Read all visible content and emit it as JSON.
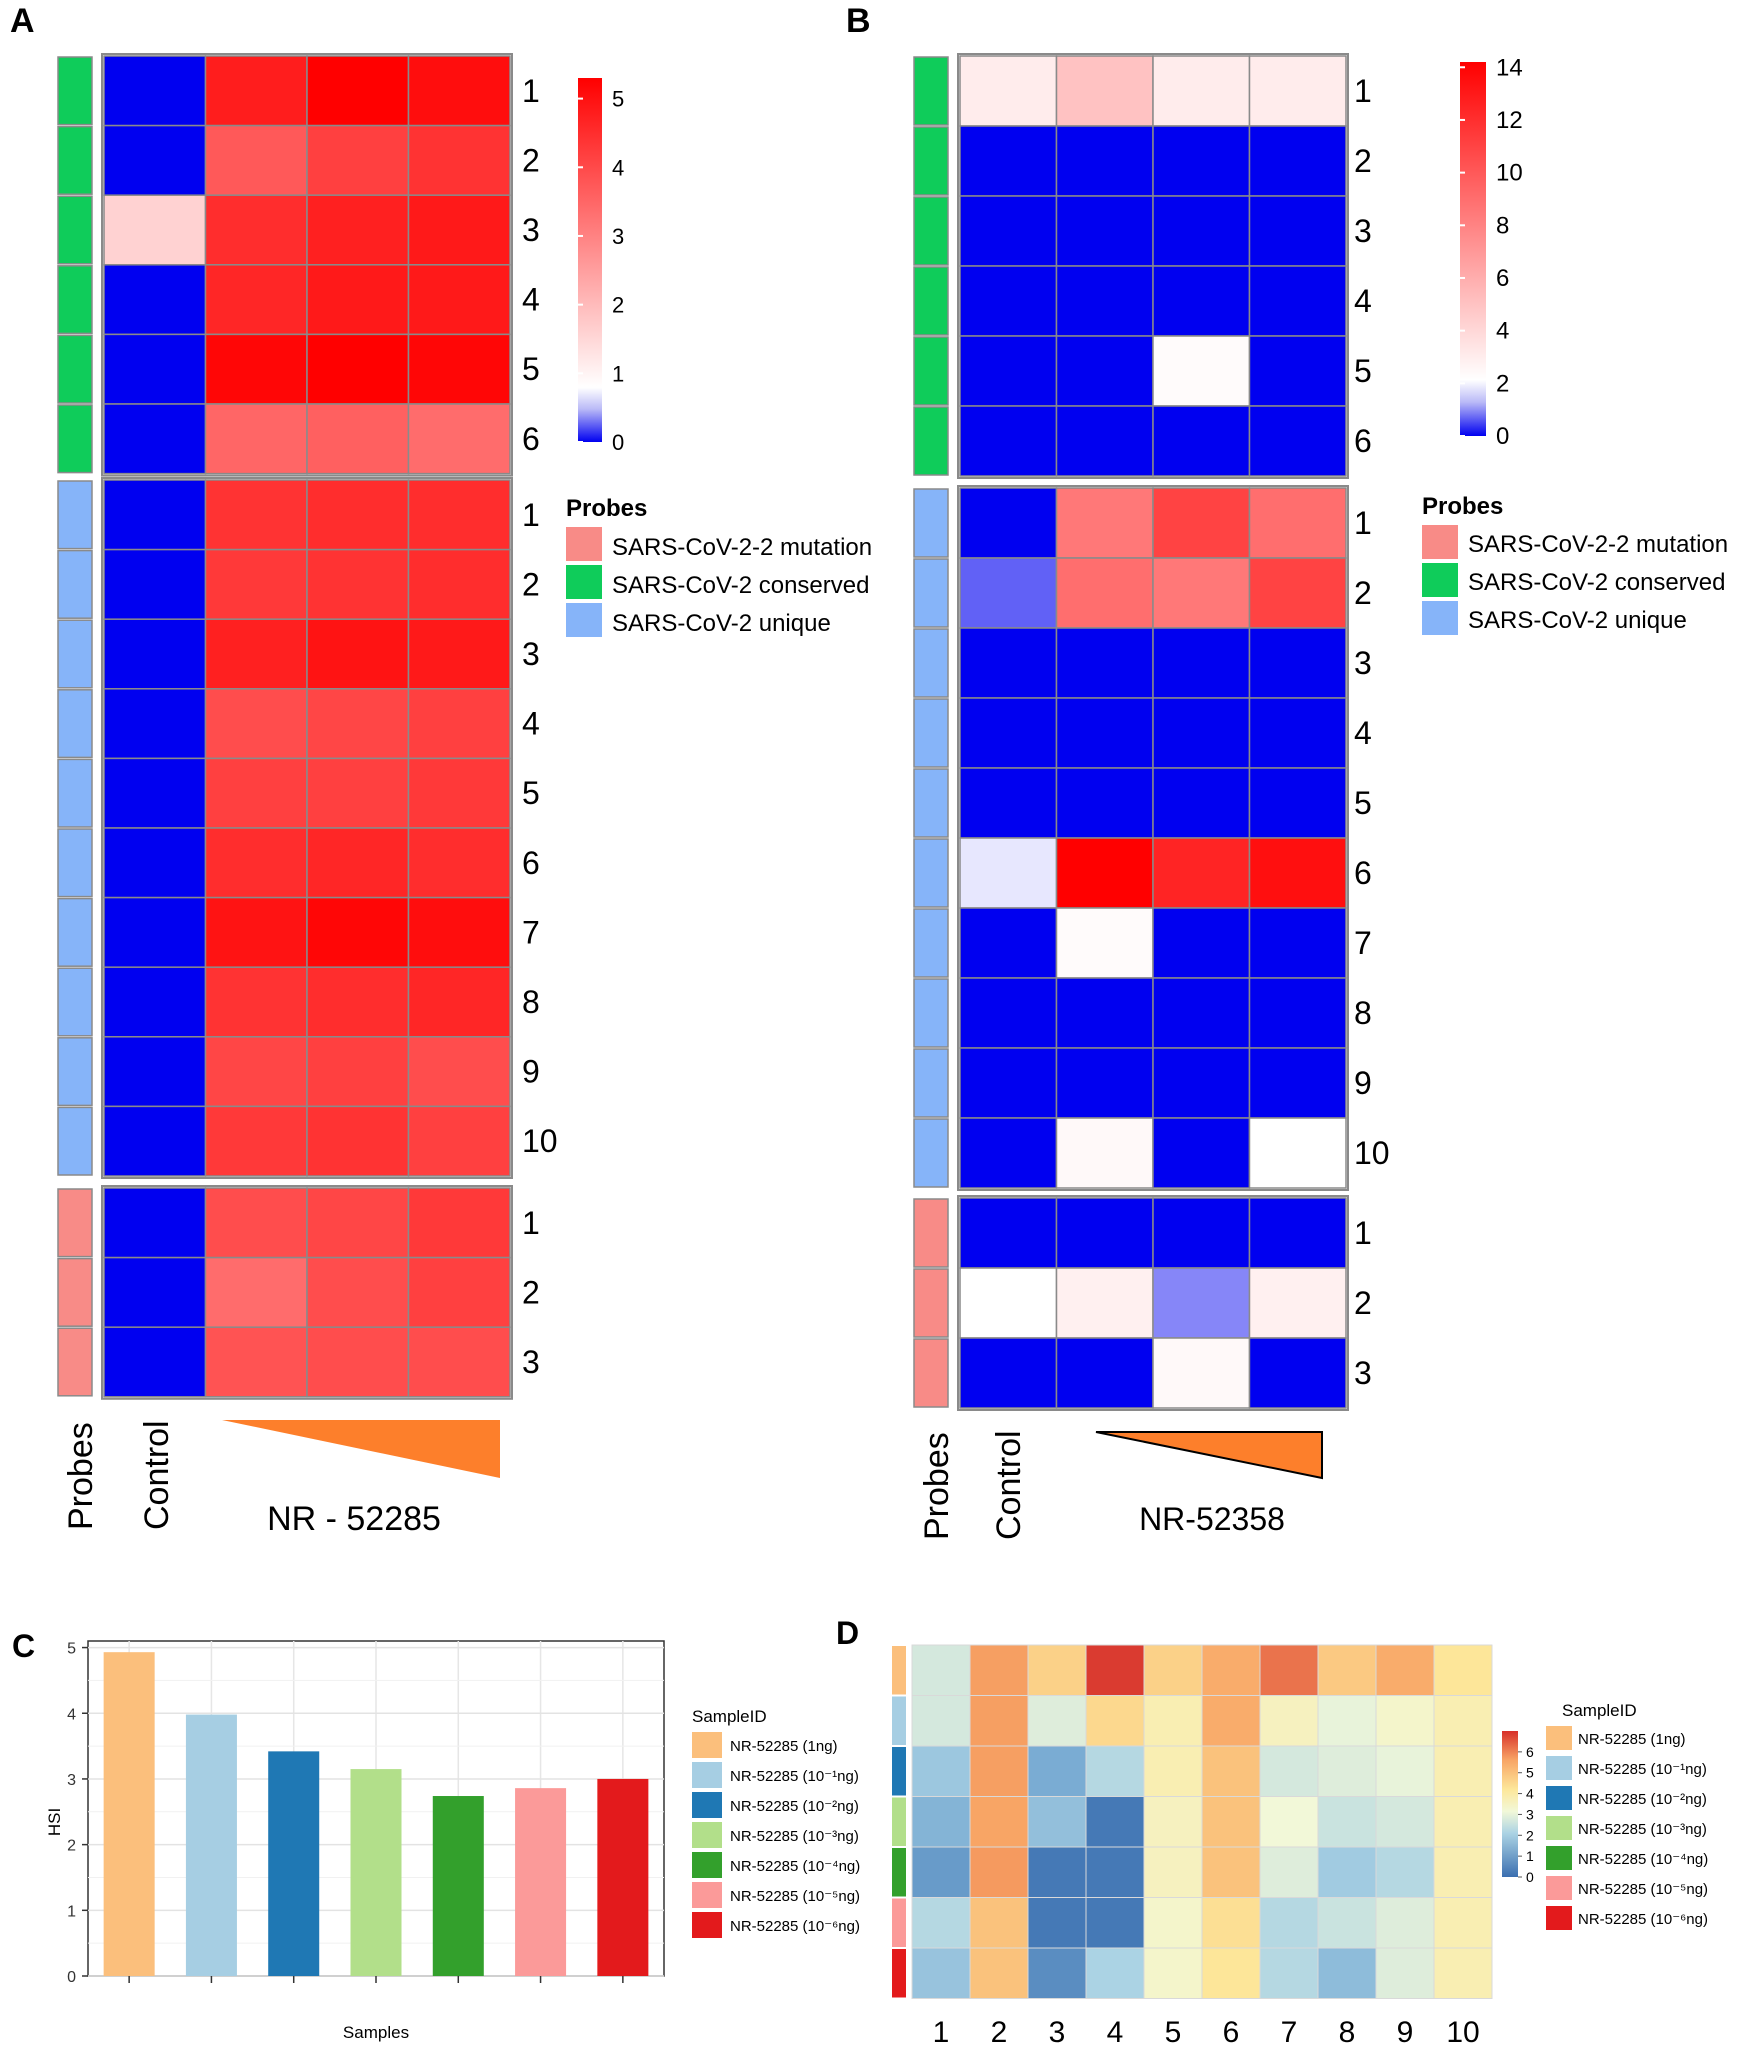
{
  "panel_labels": {
    "a": "A",
    "b": "B",
    "c": "C",
    "d": "D"
  },
  "chart_data": [
    {
      "panel": "A",
      "type": "heatmap",
      "columns": [
        "Control",
        "",
        "",
        ""
      ],
      "probe_groups": [
        {
          "group": "SARS-CoV-2 conserved",
          "rows": [
            "1",
            "2",
            "3",
            "4",
            "5",
            "6"
          ]
        },
        {
          "group": "SARS-CoV-2 unique",
          "rows": [
            "1",
            "2",
            "3",
            "4",
            "5",
            "6",
            "7",
            "8",
            "9",
            "10"
          ]
        },
        {
          "group": "SARS-CoV-2-2 mutation",
          "rows": [
            "1",
            "2",
            "3"
          ]
        }
      ],
      "values": [
        [
          0,
          4.85,
          5.3,
          5.1
        ],
        [
          0,
          3.9,
          4.3,
          4.5
        ],
        [
          2.0,
          4.6,
          4.8,
          4.9
        ],
        [
          0,
          4.7,
          4.9,
          4.9
        ],
        [
          0,
          5.2,
          5.3,
          5.2
        ],
        [
          0,
          3.7,
          3.8,
          3.6
        ],
        [
          0,
          4.5,
          4.6,
          4.6
        ],
        [
          0,
          4.4,
          4.5,
          4.6
        ],
        [
          0,
          4.8,
          5.0,
          4.9
        ],
        [
          0,
          4.1,
          4.2,
          4.3
        ],
        [
          0,
          4.3,
          4.3,
          4.4
        ],
        [
          0,
          4.6,
          4.7,
          4.6
        ],
        [
          0,
          5.0,
          5.2,
          5.1
        ],
        [
          0,
          4.5,
          4.6,
          4.7
        ],
        [
          0,
          4.2,
          4.3,
          4.1
        ],
        [
          0,
          4.4,
          4.5,
          4.3
        ],
        [
          0,
          4.1,
          4.2,
          4.4
        ],
        [
          0,
          3.6,
          4.1,
          4.3
        ],
        [
          0,
          4.0,
          4.1,
          4.1
        ]
      ],
      "scale": {
        "min": 0,
        "max": 5.3,
        "mid": 1.3,
        "ticks": [
          "5",
          "4",
          "3",
          "2",
          "1",
          "0"
        ],
        "tick_values": [
          5,
          4,
          3,
          2,
          1,
          0
        ]
      },
      "legend_title": "Probes",
      "legend_items": [
        "SARS-CoV-2-2 mutation",
        "SARS-CoV-2 conserved",
        "SARS-CoV-2 unique"
      ],
      "legend_colors": [
        "#f88b87",
        "#0fcc5a",
        "#86b4f9"
      ],
      "axis_label_probes": "Probes",
      "axis_label_control": "Control",
      "sample_label": "NR - 52285"
    },
    {
      "panel": "B",
      "type": "heatmap",
      "columns": [
        "Control",
        "",
        "",
        ""
      ],
      "probe_groups": [
        {
          "group": "SARS-CoV-2 conserved",
          "rows": [
            "1",
            "2",
            "3",
            "4",
            "5",
            "6"
          ]
        },
        {
          "group": "SARS-CoV-2 unique",
          "rows": [
            "1",
            "2",
            "3",
            "4",
            "5",
            "6",
            "7",
            "8",
            "9",
            "10"
          ]
        },
        {
          "group": "SARS-CoV-2-2 mutation",
          "rows": [
            "1",
            "2",
            "3"
          ]
        }
      ],
      "values": [
        [
          3.0,
          5.0,
          3.0,
          3.0
        ],
        [
          0,
          0,
          0,
          0
        ],
        [
          0,
          0,
          0,
          0
        ],
        [
          0,
          0,
          0,
          0
        ],
        [
          0,
          0,
          2.3,
          0
        ],
        [
          0,
          0,
          0,
          0
        ],
        [
          0,
          8.5,
          11.0,
          9.0
        ],
        [
          0.8,
          9.0,
          8.5,
          11.0
        ],
        [
          0,
          0,
          0,
          0
        ],
        [
          0,
          0,
          0,
          0
        ],
        [
          0,
          0,
          0,
          0
        ],
        [
          1.9,
          14.2,
          12.5,
          13.5
        ],
        [
          0,
          2.3,
          0,
          0
        ],
        [
          0,
          0,
          0,
          0
        ],
        [
          0,
          0,
          0,
          0
        ],
        [
          0,
          2.4,
          0,
          2.1
        ],
        [
          0,
          0,
          0,
          0
        ],
        [
          2.1,
          2.8,
          1.1,
          2.8
        ],
        [
          0,
          0,
          2.4,
          0
        ]
      ],
      "scale": {
        "min": 0,
        "max": 14.2,
        "mid": 2.1,
        "ticks": [
          "14",
          "12",
          "10",
          "8",
          "6",
          "4",
          "2",
          "0"
        ],
        "tick_values": [
          14,
          12,
          10,
          8,
          6,
          4,
          2,
          0
        ]
      },
      "legend_title": "Probes",
      "legend_items": [
        "SARS-CoV-2-2 mutation",
        "SARS-CoV-2 conserved",
        "SARS-CoV-2 unique"
      ],
      "legend_colors": [
        "#f88b87",
        "#0fcc5a",
        "#86b4f9"
      ],
      "axis_label_probes": "Probes",
      "axis_label_control": "Control",
      "sample_label": "NR-52358"
    },
    {
      "panel": "C",
      "type": "bar",
      "categories": [
        "NR-52285 (1ng)",
        "NR-52285 (10⁻¹ng)",
        "NR-52285 (10⁻²ng)",
        "NR-52285 (10⁻³ng)",
        "NR-52285 (10⁻⁴ng)",
        "NR-52285 (10⁻⁵ng)",
        "NR-52285 (10⁻⁶ng)"
      ],
      "values": [
        4.93,
        3.98,
        3.42,
        3.15,
        2.74,
        2.86,
        3.0
      ],
      "colors": [
        "#fbbf7c",
        "#a6cee3",
        "#1f78b4",
        "#b2df8a",
        "#33a02c",
        "#fb9a99",
        "#e31a1c"
      ],
      "xlabel": "Samples",
      "ylabel": "HSI",
      "ylim": [
        0,
        5.1
      ],
      "yticks": [
        "0",
        "1",
        "2",
        "3",
        "4",
        "5"
      ],
      "legend_title": "SampleID"
    },
    {
      "panel": "D",
      "type": "heatmap",
      "columns": [
        "1",
        "2",
        "3",
        "4",
        "5",
        "6",
        "7",
        "8",
        "9",
        "10"
      ],
      "rows": [
        "NR-52285 (1ng)",
        "NR-52285 (10⁻¹ng)",
        "NR-52285 (10⁻²ng)",
        "NR-52285 (10⁻³ng)",
        "NR-52285 (10⁻⁴ng)",
        "NR-52285 (10⁻⁵ng)",
        "NR-52285 (10⁻⁶ng)"
      ],
      "values": [
        [
          3.2,
          5.0,
          4.3,
          6.8,
          4.3,
          4.8,
          5.8,
          4.4,
          4.8,
          4.0
        ],
        [
          3.2,
          5.0,
          3.3,
          4.2,
          3.8,
          4.8,
          3.7,
          3.4,
          3.6,
          3.8
        ],
        [
          2.5,
          5.0,
          1.8,
          2.9,
          3.8,
          4.5,
          3.2,
          3.3,
          3.4,
          3.8
        ],
        [
          2.0,
          4.9,
          2.3,
          0.3,
          3.7,
          4.5,
          3.5,
          3.1,
          3.2,
          3.8
        ],
        [
          1.3,
          5.1,
          0.3,
          0.3,
          3.7,
          4.5,
          3.3,
          2.6,
          2.9,
          3.8
        ],
        [
          2.9,
          4.5,
          0.3,
          0.3,
          3.6,
          4.1,
          2.9,
          3.1,
          3.3,
          3.8
        ],
        [
          2.4,
          4.5,
          0.9,
          2.8,
          3.6,
          4.0,
          2.9,
          2.2,
          3.3,
          3.8
        ]
      ],
      "scale": {
        "min": 0,
        "max": 7,
        "mid": 3,
        "ticks": [
          "6",
          "5",
          "4",
          "3",
          "2",
          "1",
          "0"
        ],
        "tick_values": [
          6,
          5,
          4,
          3,
          2,
          1,
          0
        ]
      },
      "legend_title": "SampleID"
    }
  ]
}
